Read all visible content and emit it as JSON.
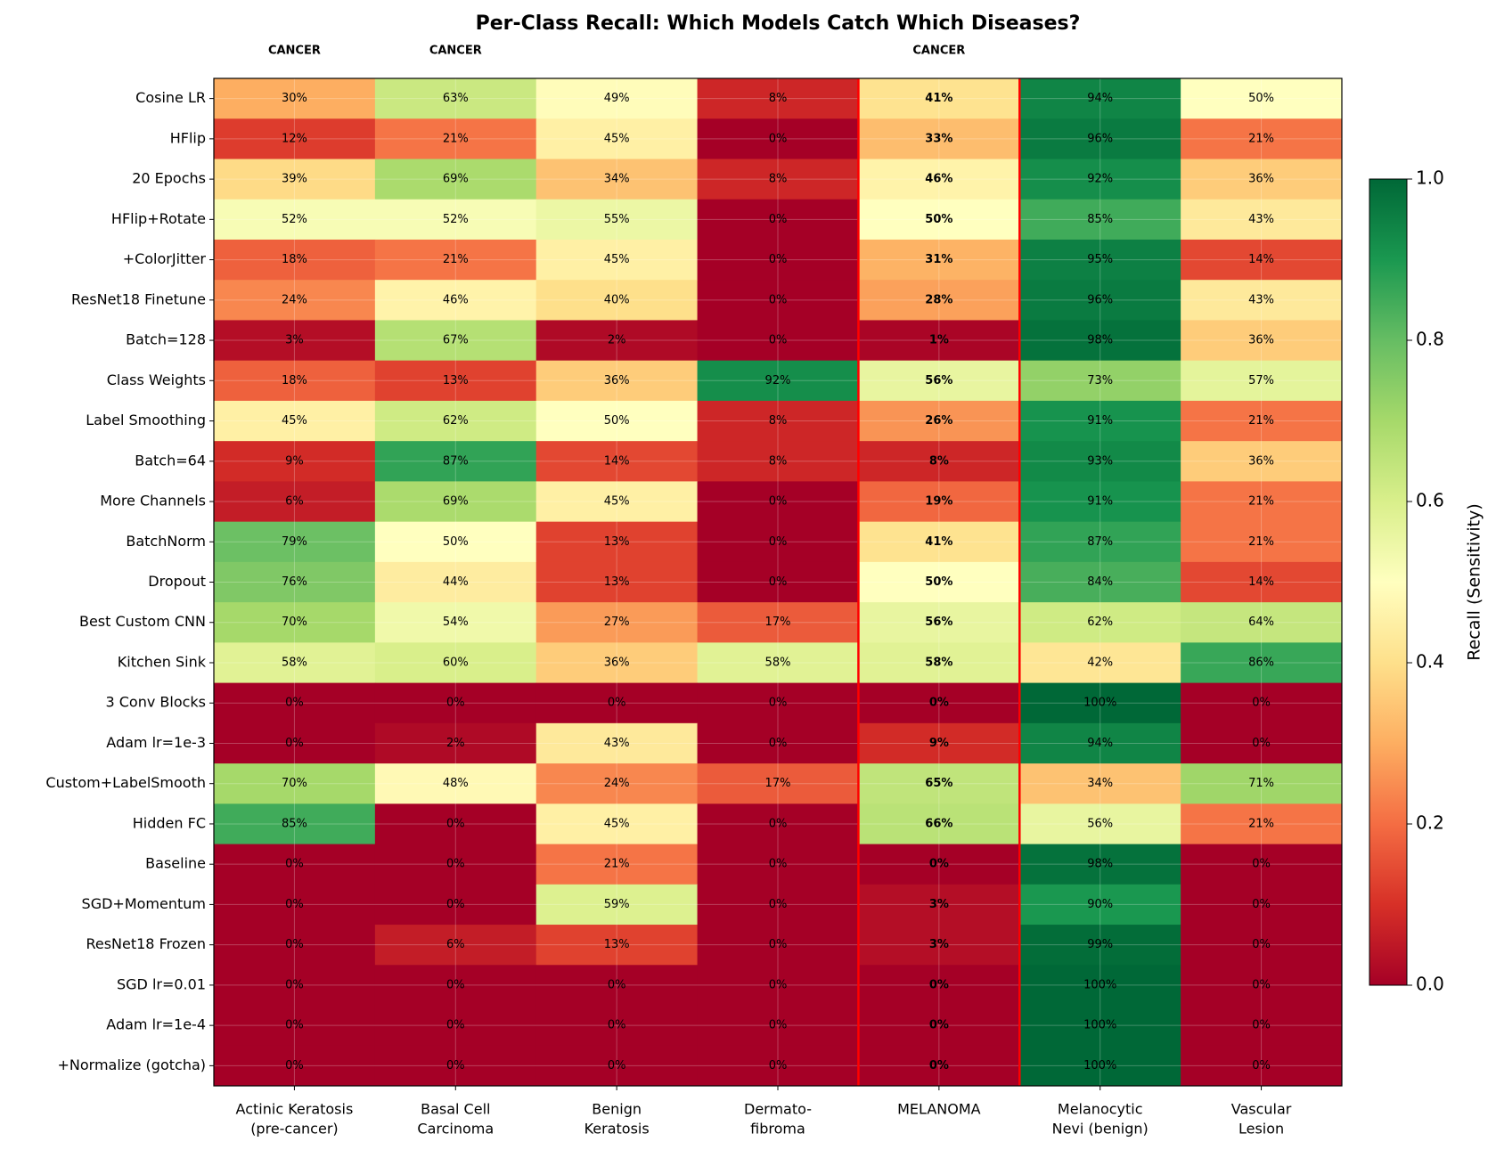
{
  "chart_data": {
    "type": "heatmap",
    "title": "Per-Class Recall: Which Models Catch Which Diseases?",
    "rows": [
      "Cosine LR",
      "HFlip",
      "20 Epochs",
      "HFlip+Rotate",
      "+ColorJitter",
      "ResNet18 Finetune",
      "Batch=128",
      "Class Weights",
      "Label Smoothing",
      "Batch=64",
      "More Channels",
      "BatchNorm",
      "Dropout",
      "Best Custom CNN",
      "Kitchen Sink",
      "3 Conv Blocks",
      "Adam lr=1e-3",
      "Custom+LabelSmooth",
      "Hidden FC",
      "Baseline",
      "SGD+Momentum",
      "ResNet18 Frozen",
      "SGD lr=0.01",
      "Adam lr=1e-4",
      "+Normalize (gotcha)"
    ],
    "columns": [
      [
        "Actinic Keratosis",
        "(pre-cancer)"
      ],
      [
        "Basal Cell",
        "Carcinoma"
      ],
      [
        "Benign",
        "Keratosis"
      ],
      [
        "Dermato-",
        "fibroma"
      ],
      [
        "MELANOMA"
      ],
      [
        "Melanocytic",
        "Nevi (benign)"
      ],
      [
        "Vascular",
        "Lesion"
      ]
    ],
    "column_annotations": [
      "CANCER",
      "CANCER",
      null,
      null,
      "CANCER",
      null,
      null
    ],
    "highlight_column": 4,
    "highlight_color": "red",
    "values": [
      [
        0.3,
        0.63,
        0.49,
        0.08,
        0.41,
        0.94,
        0.5
      ],
      [
        0.12,
        0.21,
        0.45,
        0.0,
        0.33,
        0.96,
        0.21
      ],
      [
        0.39,
        0.69,
        0.34,
        0.08,
        0.46,
        0.92,
        0.36
      ],
      [
        0.52,
        0.52,
        0.55,
        0.0,
        0.5,
        0.85,
        0.43
      ],
      [
        0.18,
        0.21,
        0.45,
        0.0,
        0.31,
        0.95,
        0.14
      ],
      [
        0.24,
        0.46,
        0.4,
        0.0,
        0.28,
        0.96,
        0.43
      ],
      [
        0.03,
        0.67,
        0.02,
        0.0,
        0.01,
        0.98,
        0.36
      ],
      [
        0.18,
        0.13,
        0.36,
        0.92,
        0.56,
        0.73,
        0.57
      ],
      [
        0.45,
        0.62,
        0.5,
        0.08,
        0.26,
        0.91,
        0.21
      ],
      [
        0.09,
        0.87,
        0.14,
        0.08,
        0.08,
        0.93,
        0.36
      ],
      [
        0.06,
        0.69,
        0.45,
        0.0,
        0.19,
        0.91,
        0.21
      ],
      [
        0.79,
        0.5,
        0.13,
        0.0,
        0.41,
        0.87,
        0.21
      ],
      [
        0.76,
        0.44,
        0.13,
        0.0,
        0.5,
        0.84,
        0.14
      ],
      [
        0.7,
        0.54,
        0.27,
        0.17,
        0.56,
        0.62,
        0.64
      ],
      [
        0.58,
        0.6,
        0.36,
        0.58,
        0.58,
        0.42,
        0.86
      ],
      [
        0.0,
        0.0,
        0.0,
        0.0,
        0.0,
        1.0,
        0.0
      ],
      [
        0.0,
        0.02,
        0.43,
        0.0,
        0.09,
        0.94,
        0.0
      ],
      [
        0.7,
        0.48,
        0.24,
        0.17,
        0.65,
        0.34,
        0.71
      ],
      [
        0.85,
        0.0,
        0.45,
        0.0,
        0.66,
        0.56,
        0.21
      ],
      [
        0.0,
        0.0,
        0.21,
        0.0,
        0.0,
        0.98,
        0.0
      ],
      [
        0.0,
        0.0,
        0.59,
        0.0,
        0.03,
        0.9,
        0.0
      ],
      [
        0.0,
        0.06,
        0.13,
        0.0,
        0.03,
        0.99,
        0.0
      ],
      [
        0.0,
        0.0,
        0.0,
        0.0,
        0.0,
        1.0,
        0.0
      ],
      [
        0.0,
        0.0,
        0.0,
        0.0,
        0.0,
        1.0,
        0.0
      ],
      [
        0.0,
        0.0,
        0.0,
        0.0,
        0.0,
        1.0,
        0.0
      ]
    ],
    "value_labels": [
      [
        "30%",
        "63%",
        "49%",
        "8%",
        "41%",
        "94%",
        "50%"
      ],
      [
        "12%",
        "21%",
        "45%",
        "0%",
        "33%",
        "96%",
        "21%"
      ],
      [
        "39%",
        "69%",
        "34%",
        "8%",
        "46%",
        "92%",
        "36%"
      ],
      [
        "52%",
        "52%",
        "55%",
        "0%",
        "50%",
        "85%",
        "43%"
      ],
      [
        "18%",
        "21%",
        "45%",
        "0%",
        "31%",
        "95%",
        "14%"
      ],
      [
        "24%",
        "46%",
        "40%",
        "0%",
        "28%",
        "96%",
        "43%"
      ],
      [
        "3%",
        "67%",
        "2%",
        "0%",
        "1%",
        "98%",
        "36%"
      ],
      [
        "18%",
        "13%",
        "36%",
        "92%",
        "56%",
        "73%",
        "57%"
      ],
      [
        "45%",
        "62%",
        "50%",
        "8%",
        "26%",
        "91%",
        "21%"
      ],
      [
        "9%",
        "87%",
        "14%",
        "8%",
        "8%",
        "93%",
        "36%"
      ],
      [
        "6%",
        "69%",
        "45%",
        "0%",
        "19%",
        "91%",
        "21%"
      ],
      [
        "79%",
        "50%",
        "13%",
        "0%",
        "41%",
        "87%",
        "21%"
      ],
      [
        "76%",
        "44%",
        "13%",
        "0%",
        "50%",
        "84%",
        "14%"
      ],
      [
        "70%",
        "54%",
        "27%",
        "17%",
        "56%",
        "62%",
        "64%"
      ],
      [
        "58%",
        "60%",
        "36%",
        "58%",
        "58%",
        "42%",
        "86%"
      ],
      [
        "0%",
        "0%",
        "0%",
        "0%",
        "0%",
        "100%",
        "0%"
      ],
      [
        "0%",
        "2%",
        "43%",
        "0%",
        "9%",
        "94%",
        "0%"
      ],
      [
        "70%",
        "48%",
        "24%",
        "17%",
        "65%",
        "34%",
        "71%"
      ],
      [
        "85%",
        "0%",
        "45%",
        "0%",
        "66%",
        "56%",
        "21%"
      ],
      [
        "0%",
        "0%",
        "21%",
        "0%",
        "0%",
        "98%",
        "0%"
      ],
      [
        "0%",
        "0%",
        "59%",
        "0%",
        "3%",
        "90%",
        "0%"
      ],
      [
        "0%",
        "6%",
        "13%",
        "0%",
        "3%",
        "99%",
        "0%"
      ],
      [
        "0%",
        "0%",
        "0%",
        "0%",
        "0%",
        "100%",
        "0%"
      ],
      [
        "0%",
        "0%",
        "0%",
        "0%",
        "0%",
        "100%",
        "0%"
      ],
      [
        "0%",
        "0%",
        "0%",
        "0%",
        "0%",
        "100%",
        "0%"
      ]
    ],
    "colormap": [
      "#a50026",
      "#d73027",
      "#f46d43",
      "#fdae61",
      "#fee08b",
      "#ffffbf",
      "#d9ef8b",
      "#a6d96a",
      "#66bd63",
      "#1a9850",
      "#006837"
    ],
    "colorbar_label": "Recall (Sensitivity)",
    "clim": [
      0,
      1
    ],
    "cticks": [
      {
        "value": 0,
        "label": "0.0"
      },
      0.2,
      0.4,
      0.6,
      0.8,
      {
        "value": 1,
        "label": "1.0"
      }
    ],
    "grid": true
  }
}
